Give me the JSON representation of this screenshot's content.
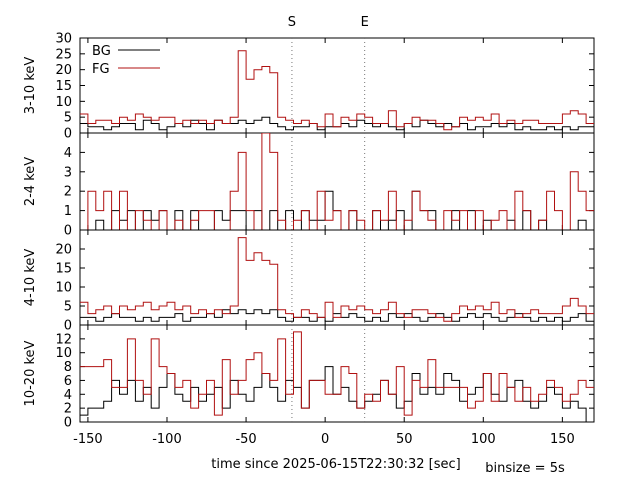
{
  "chart_data": {
    "type": "line",
    "step": true,
    "xlabel": "time since 2025-06-15T22:30:32 [sec]",
    "binsize_label": "binsize = 5s",
    "xlim": [
      -155,
      170
    ],
    "xticks": [
      -150,
      -100,
      -50,
      0,
      50,
      100,
      150
    ],
    "markers": [
      {
        "label": "S",
        "x": -21
      },
      {
        "label": "E",
        "x": 25
      }
    ],
    "legend": {
      "placement": "top-left",
      "entries": [
        "BG",
        "FG"
      ]
    },
    "colors": {
      "BG": "#000000",
      "FG": "#b01010"
    },
    "bin_start": -155,
    "bin_width": 5,
    "panels": [
      {
        "ylabel": "3-10 keV",
        "ylim": [
          0,
          30
        ],
        "yticks": [
          0,
          5,
          10,
          15,
          20,
          25,
          30
        ],
        "show_legend": true,
        "series": [
          {
            "name": "BG",
            "values": [
              3,
              2,
              2,
              1,
              2,
              3,
              3,
              1,
              4,
              3,
              1,
              2,
              3,
              2,
              4,
              3,
              1,
              4,
              3,
              3,
              4,
              3,
              4,
              5,
              3,
              2,
              1,
              2,
              2,
              3,
              1,
              2,
              2,
              3,
              2,
              4,
              3,
              2,
              3,
              2,
              1,
              3,
              2,
              4,
              3,
              2,
              3,
              2,
              3,
              1,
              2,
              2,
              3,
              2,
              3,
              1,
              2,
              1,
              1,
              2,
              1,
              2,
              1,
              2,
              2
            ]
          },
          {
            "name": "FG",
            "values": [
              6,
              3,
              4,
              4,
              3,
              5,
              4,
              6,
              5,
              4,
              5,
              5,
              3,
              4,
              3,
              4,
              3,
              4,
              3,
              5,
              26,
              17,
              20,
              21,
              19,
              5,
              4,
              3,
              4,
              3,
              2,
              6,
              2,
              5,
              4,
              6,
              5,
              3,
              3,
              7,
              2,
              3,
              5,
              4,
              4,
              3,
              1,
              2,
              5,
              4,
              5,
              4,
              6,
              3,
              4,
              3,
              4,
              4,
              3,
              3,
              3,
              6,
              7,
              6,
              3
            ]
          }
        ]
      },
      {
        "ylabel": "2-4 keV",
        "ylim": [
          0,
          5
        ],
        "yticks": [
          0,
          1,
          2,
          3,
          4
        ],
        "series": [
          {
            "name": "BG",
            "values": [
              0,
              0,
              0.5,
              0,
              1,
              0.5,
              1,
              0,
              1,
              0.5,
              1,
              0,
              1,
              0,
              1,
              0,
              0,
              1,
              0.5,
              1,
              1,
              0,
              1,
              0,
              1,
              0,
              1,
              0,
              1,
              0.5,
              0.5,
              2,
              1,
              0,
              1,
              0,
              0,
              1,
              0,
              0.5,
              1,
              0,
              2,
              1,
              1,
              0,
              0,
              1,
              0,
              1,
              0,
              0.5,
              0,
              0,
              0.5,
              0,
              1,
              0,
              0.5,
              0,
              0,
              0,
              0,
              0.5,
              0
            ]
          },
          {
            "name": "FG",
            "values": [
              0,
              2,
              1,
              2,
              0,
              2,
              0,
              1,
              0.5,
              0,
              1,
              0,
              0.5,
              0,
              0.5,
              1,
              1,
              0,
              0,
              2,
              4,
              1,
              0,
              5,
              4,
              0.5,
              0,
              0.5,
              1,
              0,
              2,
              0.5,
              1,
              0,
              1,
              0.5,
              0,
              1,
              0.5,
              2,
              0,
              0.5,
              2,
              1,
              0.5,
              0,
              1,
              0.5,
              1,
              0,
              1,
              0,
              0.5,
              1,
              0,
              2,
              1,
              0,
              0.5,
              2,
              1,
              0,
              3,
              2,
              1
            ]
          }
        ]
      },
      {
        "ylabel": "4-10 keV",
        "ylim": [
          0,
          25
        ],
        "yticks": [
          0,
          5,
          10,
          15,
          20
        ],
        "series": [
          {
            "name": "BG",
            "values": [
              2,
              2,
              1,
              2,
              3,
              2,
              2,
              1,
              2,
              1,
              2,
              2,
              3,
              1,
              2,
              2,
              3,
              2,
              4,
              3,
              4,
              3,
              4,
              3,
              4,
              2,
              1,
              2,
              2,
              1,
              2,
              1,
              3,
              2,
              3,
              2,
              1,
              2,
              1,
              3,
              2,
              3,
              2,
              1,
              2,
              3,
              2,
              1,
              2,
              3,
              2,
              3,
              2,
              1,
              2,
              3,
              2,
              1,
              2,
              1,
              2,
              1,
              2,
              3,
              1
            ]
          },
          {
            "name": "FG",
            "values": [
              6,
              3,
              4,
              5,
              3,
              5,
              4,
              5,
              6,
              4,
              5,
              6,
              4,
              5,
              3,
              4,
              3,
              4,
              3,
              5,
              23,
              17,
              19,
              17,
              16,
              4,
              3,
              2,
              4,
              3,
              2,
              6,
              2,
              5,
              4,
              5,
              4,
              3,
              4,
              6,
              3,
              2,
              4,
              4,
              3,
              2,
              1,
              3,
              5,
              4,
              5,
              4,
              6,
              3,
              4,
              2,
              3,
              4,
              3,
              3,
              3,
              5,
              7,
              5,
              3
            ]
          }
        ]
      },
      {
        "ylabel": "10-20 keV",
        "ylim": [
          0,
          14
        ],
        "yticks": [
          0,
          2,
          4,
          6,
          8,
          10,
          12
        ],
        "series": [
          {
            "name": "BG",
            "values": [
              1,
              2,
              2,
              3,
              6,
              4,
              6,
              3,
              5,
              2,
              5,
              7,
              4,
              3,
              5,
              3,
              4,
              5,
              2,
              6,
              4,
              3,
              5,
              7,
              5,
              3,
              6,
              5,
              2,
              6,
              6,
              8,
              4,
              5,
              3,
              2,
              3,
              4,
              6,
              4,
              2,
              3,
              7,
              4,
              5,
              4,
              7,
              6,
              3,
              4,
              5,
              7,
              4,
              3,
              5,
              6,
              3,
              2,
              3,
              5,
              4,
              2,
              3,
              2,
              0
            ]
          },
          {
            "name": "FG",
            "values": [
              8,
              8,
              8,
              9,
              5,
              5,
              12,
              6,
              4,
              12,
              8,
              7,
              5,
              6,
              2,
              4,
              6,
              1,
              9,
              4,
              6,
              9,
              10,
              7,
              6,
              12,
              4,
              13,
              2,
              6,
              6,
              4,
              4,
              8,
              7,
              2,
              4,
              3,
              6,
              4,
              8,
              1,
              6,
              5,
              9,
              5,
              5,
              5,
              5,
              2,
              3,
              7,
              3,
              7,
              5,
              3,
              5,
              3,
              4,
              6,
              5,
              3,
              4,
              6,
              5
            ]
          }
        ]
      }
    ]
  }
}
